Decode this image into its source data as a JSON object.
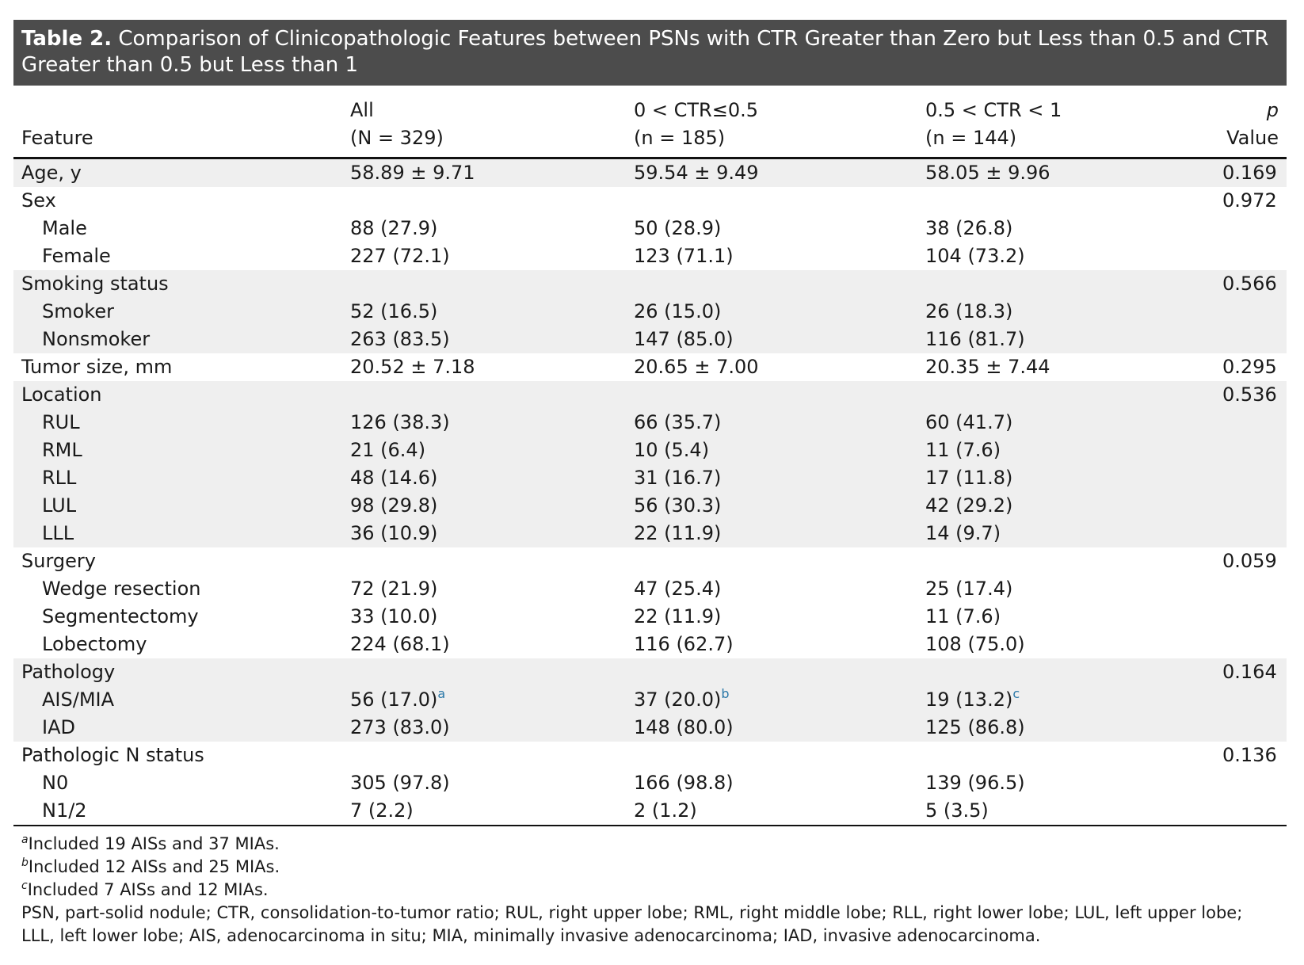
{
  "title": {
    "label": "Table 2.",
    "text": "Comparison of Clinicopathologic Features between PSNs with CTR Greater than Zero but Less than 0.5 and CTR Greater than 0.5 but Less than 1"
  },
  "columns": {
    "feature": "Feature",
    "all_l1": "All",
    "all_l2": "(N = 329)",
    "a_l1": "0 < CTR≤0.5",
    "a_l2": "(n = 185)",
    "b_l1": "0.5 < CTR < 1",
    "b_l2": "(n = 144)",
    "p_italic": "p",
    "p_rest": " Value"
  },
  "rows": [
    {
      "feature": "Age, y",
      "all": "58.89 ± 9.71",
      "a": "59.54 ± 9.49",
      "b": "58.05 ± 9.96",
      "p": "0.169"
    },
    {
      "feature": "Sex",
      "all": "",
      "a": "",
      "b": "",
      "p": "0.972"
    },
    {
      "feature": "Male",
      "all": "88 (27.9)",
      "a": "50 (28.9)",
      "b": "38 (26.8)",
      "p": ""
    },
    {
      "feature": "Female",
      "all": "227 (72.1)",
      "a": "123 (71.1)",
      "b": "104 (73.2)",
      "p": ""
    },
    {
      "feature": "Smoking status",
      "all": "",
      "a": "",
      "b": "",
      "p": "0.566"
    },
    {
      "feature": "Smoker",
      "all": "52 (16.5)",
      "a": "26 (15.0)",
      "b": "26 (18.3)",
      "p": ""
    },
    {
      "feature": "Nonsmoker",
      "all": "263 (83.5)",
      "a": "147 (85.0)",
      "b": "116 (81.7)",
      "p": ""
    },
    {
      "feature": "Tumor size, mm",
      "all": "20.52 ± 7.18",
      "a": "20.65 ± 7.00",
      "b": "20.35 ± 7.44",
      "p": "0.295"
    },
    {
      "feature": "Location",
      "all": "",
      "a": "",
      "b": "",
      "p": "0.536"
    },
    {
      "feature": "RUL",
      "all": "126 (38.3)",
      "a": "66 (35.7)",
      "b": "60 (41.7)",
      "p": ""
    },
    {
      "feature": "RML",
      "all": "21 (6.4)",
      "a": "10 (5.4)",
      "b": "11 (7.6)",
      "p": ""
    },
    {
      "feature": "RLL",
      "all": "48 (14.6)",
      "a": "31 (16.7)",
      "b": "17 (11.8)",
      "p": ""
    },
    {
      "feature": "LUL",
      "all": "98 (29.8)",
      "a": "56 (30.3)",
      "b": "42 (29.2)",
      "p": ""
    },
    {
      "feature": "LLL",
      "all": "36 (10.9)",
      "a": "22 (11.9)",
      "b": "14 (9.7)",
      "p": ""
    },
    {
      "feature": "Surgery",
      "all": "",
      "a": "",
      "b": "",
      "p": "0.059"
    },
    {
      "feature": "Wedge resection",
      "all": "72 (21.9)",
      "a": "47 (25.4)",
      "b": "25 (17.4)",
      "p": ""
    },
    {
      "feature": "Segmentectomy",
      "all": "33 (10.0)",
      "a": "22 (11.9)",
      "b": "11 (7.6)",
      "p": ""
    },
    {
      "feature": "Lobectomy",
      "all": "224 (68.1)",
      "a": "116 (62.7)",
      "b": "108 (75.0)",
      "p": ""
    },
    {
      "feature": "Pathology",
      "all": "",
      "a": "",
      "b": "",
      "p": "0.164"
    },
    {
      "feature": "AIS/MIA",
      "all": "56 (17.0)",
      "a": "37 (20.0)",
      "b": "19 (13.2)",
      "p": "",
      "all_sup": "a",
      "a_sup": "b",
      "b_sup": "c"
    },
    {
      "feature": "IAD",
      "all": "273 (83.0)",
      "a": "148 (80.0)",
      "b": "125 (86.8)",
      "p": ""
    },
    {
      "feature": "Pathologic N status",
      "all": "",
      "a": "",
      "b": "",
      "p": "0.136"
    },
    {
      "feature": "N0",
      "all": "305 (97.8)",
      "a": "166 (98.8)",
      "b": "139 (96.5)",
      "p": ""
    },
    {
      "feature": "N1/2",
      "all": "7 (2.2)",
      "a": "2 (1.2)",
      "b": "5 (3.5)",
      "p": ""
    }
  ],
  "footnotes": [
    {
      "mark": "a",
      "text": "Included 19 AISs and 37 MIAs."
    },
    {
      "mark": "b",
      "text": "Included 12 AISs and 25 MIAs."
    },
    {
      "mark": "c",
      "text": "Included 7 AISs and 12 MIAs."
    }
  ],
  "abbreviations": "PSN, part-solid nodule; CTR, consolidation-to-tumor ratio; RUL, right upper lobe; RML, right middle lobe; RLL, right lower lobe; LUL, left upper lobe; LLL, left lower lobe; AIS, adenocarcinoma in situ; MIA, minimally invasive adenocarcinoma; IAD, invasive adenocarcinoma."
}
